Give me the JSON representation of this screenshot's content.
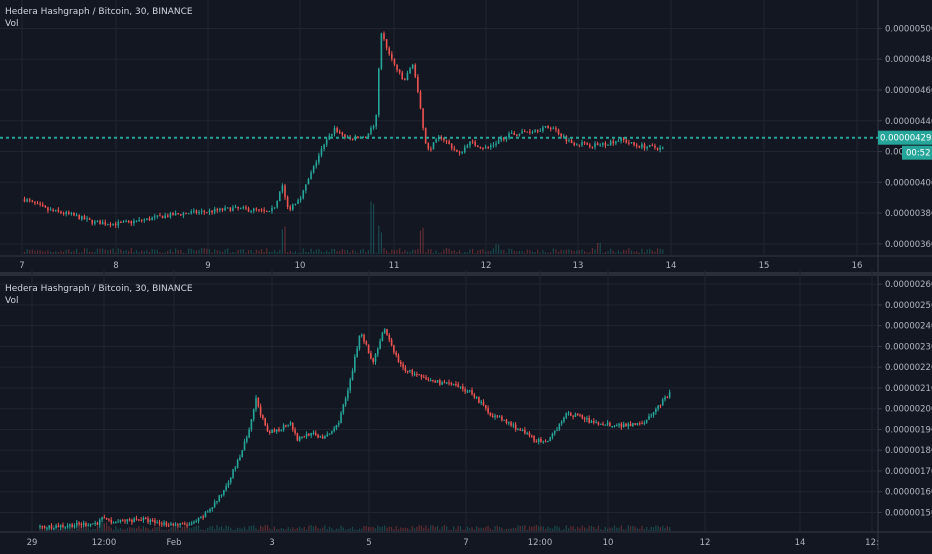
{
  "colors": {
    "background": "#131722",
    "grid": "#1f2430",
    "up": "#26a69a",
    "down": "#ef5350",
    "axis_text": "#b2b5be",
    "price_line": "#26a69a"
  },
  "chart_data": [
    {
      "type": "candlestick",
      "title": "Hedera Hashgraph / Bitcoin, 30, BINANCE",
      "subtitle": "Vol",
      "x_tick_labels": [
        "7",
        "8",
        "9",
        "10",
        "11",
        "12",
        "13",
        "14",
        "15",
        "16"
      ],
      "y_tick_labels": [
        "0.00000500",
        "0.00000480",
        "0.00000460",
        "0.00000440",
        "0.00000420",
        "0.00000400",
        "0.00000380",
        "0.00000360"
      ],
      "ylim": [
        3.56e-06,
        5.12e-06
      ],
      "current_price": "0.00000429",
      "countdown": "00:52",
      "price_path": [
        [
          7.0,
          3.89e-06
        ],
        [
          7.25,
          3.82e-06
        ],
        [
          7.5,
          3.79e-06
        ],
        [
          7.75,
          3.74e-06
        ],
        [
          8.0,
          3.73e-06
        ],
        [
          8.25,
          3.75e-06
        ],
        [
          8.5,
          3.78e-06
        ],
        [
          8.75,
          3.8e-06
        ],
        [
          9.0,
          3.81e-06
        ],
        [
          9.25,
          3.83e-06
        ],
        [
          9.5,
          3.82e-06
        ],
        [
          9.65,
          3.8e-06
        ],
        [
          9.72,
          3.86e-06
        ],
        [
          9.78,
          4e-06
        ],
        [
          9.85,
          3.82e-06
        ],
        [
          10.0,
          3.92e-06
        ],
        [
          10.2,
          4.2e-06
        ],
        [
          10.35,
          4.35e-06
        ],
        [
          10.5,
          4.28e-06
        ],
        [
          10.7,
          4.3e-06
        ],
        [
          10.8,
          4.4e-06
        ],
        [
          10.85,
          4.98e-06
        ],
        [
          10.95,
          4.82e-06
        ],
        [
          11.1,
          4.65e-06
        ],
        [
          11.2,
          4.78e-06
        ],
        [
          11.35,
          4.2e-06
        ],
        [
          11.5,
          4.3e-06
        ],
        [
          11.7,
          4.18e-06
        ],
        [
          11.8,
          4.26e-06
        ],
        [
          12.0,
          4.22e-06
        ],
        [
          12.2,
          4.3e-06
        ],
        [
          12.5,
          4.34e-06
        ],
        [
          12.7,
          4.36e-06
        ],
        [
          12.9,
          4.26e-06
        ],
        [
          13.2,
          4.24e-06
        ],
        [
          13.45,
          4.28e-06
        ],
        [
          13.6,
          4.24e-06
        ],
        [
          13.9,
          4.22e-06
        ]
      ],
      "volume_spikes": [
        [
          9.8,
          28
        ],
        [
          10.75,
          60
        ],
        [
          10.85,
          32
        ],
        [
          11.3,
          38
        ],
        [
          12.1,
          12
        ],
        [
          13.2,
          14
        ]
      ]
    },
    {
      "type": "candlestick",
      "title": "Hedera Hashgraph / Bitcoin, 30, BINANCE",
      "subtitle": "Vol",
      "x_tick_labels": [
        "29",
        "12:00",
        "Feb",
        "3",
        "5",
        "7",
        "12:00",
        "10",
        "12",
        "14",
        "12:"
      ],
      "y_tick_labels": [
        "0.00000260",
        "0.00000250",
        "0.00000240",
        "0.00000230",
        "0.00000220",
        "0.00000210",
        "0.00000200",
        "0.00000190",
        "0.00000180",
        "0.00000170",
        "0.00000160",
        "0.00000150"
      ],
      "ylim": [
        1.43e-06,
        2.62e-06
      ],
      "price_path": [
        [
          0.0,
          1.43e-06
        ],
        [
          0.3,
          1.44e-06
        ],
        [
          0.5,
          1.45e-06
        ],
        [
          0.55,
          1.48e-06
        ],
        [
          0.6,
          1.45e-06
        ],
        [
          0.75,
          1.46e-06
        ],
        [
          0.85,
          1.47e-06
        ],
        [
          1.0,
          1.45e-06
        ],
        [
          1.2,
          1.44e-06
        ],
        [
          1.3,
          1.44e-06
        ],
        [
          1.4,
          1.48e-06
        ],
        [
          1.55,
          1.58e-06
        ],
        [
          1.7,
          1.75e-06
        ],
        [
          1.8,
          1.9e-06
        ],
        [
          1.85,
          2.05e-06
        ],
        [
          1.95,
          1.88e-06
        ],
        [
          2.05,
          1.9e-06
        ],
        [
          2.15,
          1.94e-06
        ],
        [
          2.2,
          1.85e-06
        ],
        [
          2.3,
          1.88e-06
        ],
        [
          2.45,
          1.86e-06
        ],
        [
          2.55,
          1.92e-06
        ],
        [
          2.65,
          2.1e-06
        ],
        [
          2.75,
          2.38e-06
        ],
        [
          2.85,
          2.22e-06
        ],
        [
          2.95,
          2.38e-06
        ],
        [
          3.1,
          2.2e-06
        ],
        [
          3.3,
          2.14e-06
        ],
        [
          3.5,
          2.12e-06
        ],
        [
          3.7,
          2.08e-06
        ],
        [
          3.85,
          1.98e-06
        ],
        [
          4.05,
          1.92e-06
        ],
        [
          4.25,
          1.85e-06
        ],
        [
          4.35,
          1.83e-06
        ],
        [
          4.5,
          1.97e-06
        ],
        [
          4.6,
          1.97e-06
        ],
        [
          4.75,
          1.93e-06
        ],
        [
          5.0,
          1.92e-06
        ],
        [
          5.2,
          1.94e-06
        ],
        [
          5.3,
          2.01e-06
        ],
        [
          5.4,
          2.07e-06
        ]
      ],
      "volume_spikes": [
        [
          0.55,
          10
        ],
        [
          5.45,
          55
        ],
        [
          5.6,
          30
        ],
        [
          5.9,
          48
        ],
        [
          6.1,
          20
        ]
      ]
    }
  ]
}
